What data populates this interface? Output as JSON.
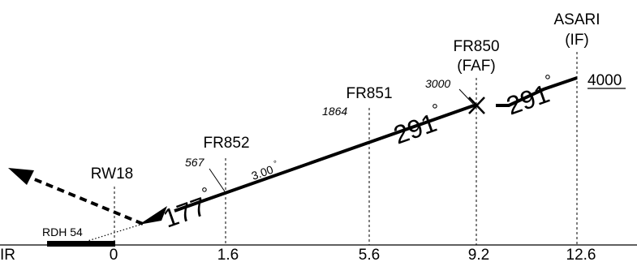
{
  "fixes": [
    {
      "name": "ASARI",
      "role": "(IF)",
      "distance": "12.6",
      "altitude": "4000"
    },
    {
      "name": "FR850",
      "role": "(FAF)",
      "distance": "9.2",
      "altitude": "3000"
    },
    {
      "name": "FR851",
      "role": "",
      "distance": "5.6",
      "altitude": "1864"
    },
    {
      "name": "FR852",
      "role": "",
      "distance": "1.6",
      "altitude": "567"
    },
    {
      "name": "RW18",
      "role": "",
      "distance": "0",
      "altitude": ""
    }
  ],
  "axis_label": "IR",
  "rdh": "RDH 54",
  "glide_angle": "3.00",
  "angle_mark": "°",
  "courses": {
    "intermediate": "291",
    "final": "291",
    "missed": "177"
  },
  "colors": {
    "ink": "#000000",
    "background": "#ffffff"
  }
}
